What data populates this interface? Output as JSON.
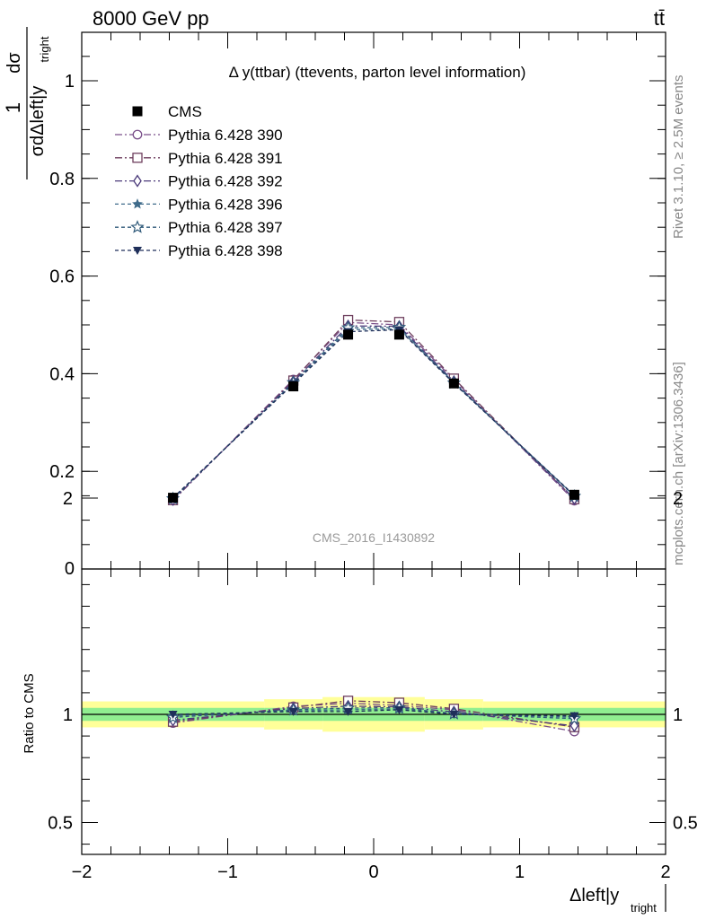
{
  "header": {
    "energy": "8000 GeV pp",
    "process": "tt̄"
  },
  "side_labels": {
    "rivet": "Rivet 3.1.10, ≥ 2.5M events",
    "mcplots": "mcplots.cern.ch [arXiv:1306.3436]"
  },
  "watermark": "CMS_2016_I1430892",
  "main_plot": {
    "title": "Δ y(ttbar) (ttevents, parton level information)",
    "ylabel_num": "dσ",
    "ylabel_den": "σdΔleft|y",
    "ylabel_sub": "tright",
    "ylabel_one": "1"
  },
  "ratio_plot": {
    "ylabel": "Ratio to CMS"
  },
  "xlabel": {
    "main": "Δleft|y",
    "sub": "tright"
  },
  "colors": {
    "cms": "#000000",
    "band_inner": "#90ee90",
    "band_outer": "#ffff99"
  },
  "chart_data": {
    "type": "line",
    "x": [
      -1.375,
      -0.55,
      -0.175,
      0.175,
      0.55,
      1.375
    ],
    "x_edges": [
      -2.0,
      -0.75,
      -0.35,
      0.0,
      0.35,
      0.75,
      2.0
    ],
    "xlim": [
      -2.0,
      2.0
    ],
    "ylim": [
      0,
      1.1
    ],
    "ratio_ylim": [
      0.35,
      2.3
    ],
    "x_ticks": [
      -2,
      -1,
      0,
      1,
      2
    ],
    "x_tick_labels": [
      "−2",
      "−1",
      "0",
      "1",
      "2"
    ],
    "y_ticks": [
      0.2,
      0.4,
      0.6,
      0.8,
      1.0
    ],
    "y_tick_labels": [
      "0.2",
      "0.4",
      "0.6",
      "0.8",
      "1"
    ],
    "y_zero_label": "0",
    "ratio_ticks": [
      0.5,
      1,
      2
    ],
    "ratio_tick_labels": [
      "0.5",
      "1",
      "2"
    ],
    "cms": {
      "name": "CMS",
      "values": [
        0.146,
        0.374,
        0.48,
        0.48,
        0.38,
        0.152
      ]
    },
    "ratio_band_inner": [
      0.03,
      0.03,
      0.03,
      0.03,
      0.03,
      0.03
    ],
    "ratio_band_outer": [
      0.06,
      0.07,
      0.08,
      0.08,
      0.07,
      0.06
    ],
    "series": [
      {
        "name": "Pythia 6.428 390",
        "values": [
          0.14,
          0.388,
          0.505,
          0.5,
          0.388,
          0.14
        ],
        "ratio": [
          0.96,
          1.037,
          1.052,
          1.042,
          1.021,
          0.921
        ],
        "color": "#7a4f8a",
        "marker": "circle-open",
        "dash": "8,3,2,3"
      },
      {
        "name": "Pythia 6.428 391",
        "values": [
          0.141,
          0.386,
          0.51,
          0.506,
          0.39,
          0.143
        ],
        "ratio": [
          0.966,
          1.032,
          1.063,
          1.054,
          1.026,
          0.941
        ],
        "color": "#6e3f5e",
        "marker": "square-open",
        "dash": "8,3,2,3"
      },
      {
        "name": "Pythia 6.428 392",
        "values": [
          0.142,
          0.384,
          0.498,
          0.497,
          0.384,
          0.144
        ],
        "ratio": [
          0.973,
          1.027,
          1.038,
          1.035,
          1.011,
          0.947
        ],
        "color": "#4b3a7a",
        "marker": "diamond-open",
        "dash": "8,3,2,3"
      },
      {
        "name": "Pythia 6.428 396",
        "values": [
          0.145,
          0.38,
          0.49,
          0.492,
          0.382,
          0.15
        ],
        "ratio": [
          0.993,
          1.016,
          1.021,
          1.025,
          1.005,
          0.987
        ],
        "color": "#3f6b8a",
        "marker": "star-filled",
        "dash": "4,3"
      },
      {
        "name": "Pythia 6.428 397",
        "values": [
          0.144,
          0.382,
          0.494,
          0.495,
          0.381,
          0.149
        ],
        "ratio": [
          0.986,
          1.021,
          1.029,
          1.031,
          1.003,
          0.98
        ],
        "color": "#2f5a7a",
        "marker": "star-open",
        "dash": "4,3"
      },
      {
        "name": "Pythia 6.428 398",
        "values": [
          0.146,
          0.379,
          0.486,
          0.49,
          0.38,
          0.151
        ],
        "ratio": [
          1.0,
          1.013,
          1.013,
          1.021,
          1.0,
          0.993
        ],
        "color": "#1f2f5a",
        "marker": "triangle-down-filled",
        "dash": "4,3"
      }
    ]
  }
}
